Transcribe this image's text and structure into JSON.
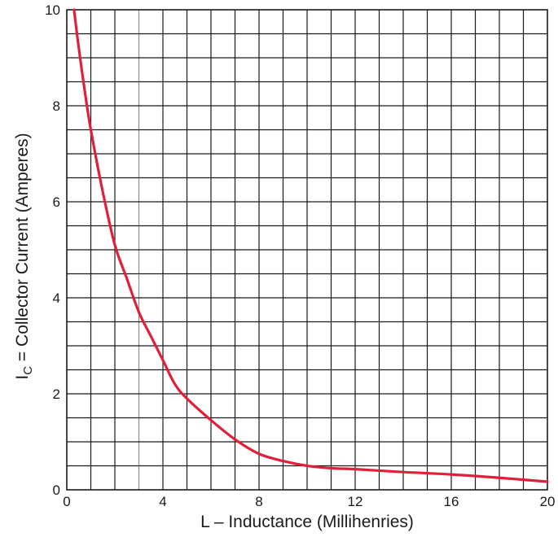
{
  "chart_data": {
    "type": "line",
    "xlabel": "L – Inductance (Millihenries)",
    "ylabel": {
      "prefix": "I",
      "subscript": "C",
      "rest": " = Collector Current (Amperes)"
    },
    "xlim": [
      0,
      20
    ],
    "ylim": [
      0,
      10
    ],
    "x_ticks": [
      0,
      4,
      8,
      12,
      16,
      20
    ],
    "y_ticks": [
      0,
      2,
      4,
      6,
      8,
      10
    ],
    "grid": true,
    "grid_minor_x_step": 1,
    "grid_minor_y_step": 0.5,
    "series": [
      {
        "color": "#e0203a",
        "x": [
          0.3,
          0.5,
          0.75,
          1,
          1.5,
          2,
          2.5,
          3,
          3.5,
          4,
          4.5,
          5,
          6,
          7,
          8,
          9,
          10,
          11,
          12,
          14,
          16,
          18,
          20
        ],
        "y": [
          10,
          9.2,
          8.3,
          7.5,
          6.2,
          5.1,
          4.4,
          3.7,
          3.2,
          2.7,
          2.2,
          1.9,
          1.45,
          1.05,
          0.75,
          0.6,
          0.5,
          0.45,
          0.43,
          0.37,
          0.32,
          0.25,
          0.17
        ]
      }
    ]
  }
}
